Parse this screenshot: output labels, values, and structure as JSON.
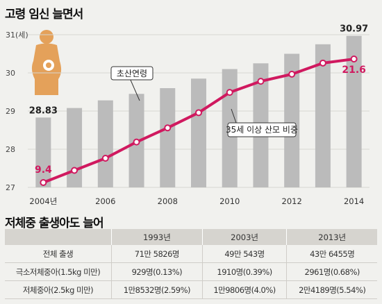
{
  "chart_title": "고령 임신 늘면서",
  "chart_data": {
    "type": "bar",
    "categories": [
      "2004",
      "2005",
      "2006",
      "2007",
      "2008",
      "2009",
      "2010",
      "2011",
      "2012",
      "2013",
      "2014"
    ],
    "x_tick_labels": [
      "2004년",
      "2006",
      "2008",
      "2010",
      "2012",
      "2014"
    ],
    "y_ticks": [
      "27",
      "28",
      "29",
      "30",
      "31(세)"
    ],
    "ylim": [
      27,
      31
    ],
    "series": [
      {
        "name": "초산연령",
        "type": "bar",
        "values": [
          28.83,
          29.08,
          29.28,
          29.45,
          29.6,
          29.85,
          30.1,
          30.25,
          30.5,
          30.75,
          30.97
        ]
      },
      {
        "name": "35세 이상 산모 비중",
        "type": "line",
        "values": [
          9.4,
          10.6,
          11.8,
          13.4,
          14.8,
          16.3,
          18.3,
          19.4,
          20.1,
          21.2,
          21.6
        ]
      }
    ],
    "line_range": [
      9.4,
      21.6
    ],
    "data_labels": {
      "bar_first": "28.83",
      "bar_last": "30.97",
      "line_first": "9.4",
      "line_last": "21.6"
    },
    "colors": {
      "bar": "#bbbbbb",
      "line": "#d0195f"
    }
  },
  "table": {
    "title": "저체중 출생아도 늘어",
    "headers": [
      "",
      "1993년",
      "2003년",
      "2013년"
    ],
    "rows": [
      [
        "전체 출생",
        "71만 5826명",
        "49만 543명",
        "43만 6455명"
      ],
      [
        "극소저체중아(1.5kg 미만)",
        "929명(0.13%)",
        "1910명(0.39%)",
        "2961명(0.68%)"
      ],
      [
        "저체중아(2.5kg 미만)",
        "1만8532명(2.59%)",
        "1만9806명(4.0%)",
        "2만4189명(5.54%)"
      ]
    ]
  }
}
